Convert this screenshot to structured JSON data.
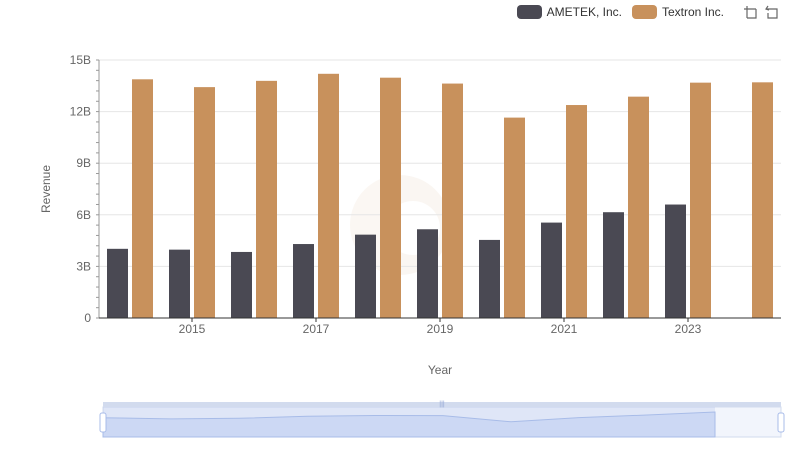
{
  "chart_data": {
    "type": "bar",
    "title": "",
    "xlabel": "Year",
    "ylabel": "Revenue",
    "x": [
      2014,
      2015,
      2016,
      2017,
      2018,
      2019,
      2020,
      2021,
      2022,
      2023,
      2024
    ],
    "x_tick_labels": [
      "2015",
      "2017",
      "2019",
      "2021",
      "2023"
    ],
    "y_tick_labels": [
      "0",
      "3B",
      "6B",
      "9B",
      "12B",
      "15B"
    ],
    "ylim": [
      0,
      15000000000
    ],
    "series": [
      {
        "name": "AMETEK, Inc.",
        "color": "#4a4953",
        "values": [
          4022000000,
          3974000000,
          3840000000,
          4300000000,
          4846000000,
          5159000000,
          4540000000,
          5547000000,
          6151000000,
          6597000000,
          null
        ]
      },
      {
        "name": "Textron Inc.",
        "color": "#c8915c",
        "values": [
          13878000000,
          13423000000,
          13788000000,
          14198000000,
          13972000000,
          13630000000,
          11651000000,
          12382000000,
          12869000000,
          13683000000,
          13702000000
        ]
      }
    ],
    "legend_position": "top-right",
    "grid": true
  },
  "toolbox": {
    "zoom_icon": "zoom-icon",
    "restore_icon": "restore-icon"
  }
}
